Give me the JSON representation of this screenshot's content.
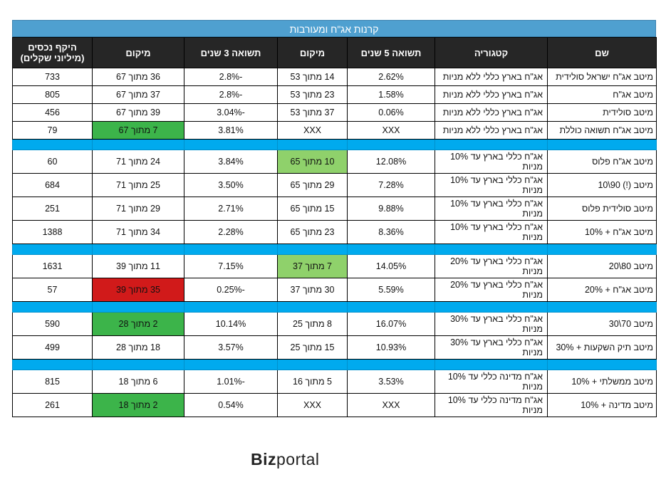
{
  "title": "קרנות אג\"ח ומעורבות",
  "headers": {
    "name": "שם",
    "category": "קטגוריה",
    "ret5": "תשואה 5 שנים",
    "rank5": "מיקום",
    "ret3": "תשואה 3 שנים",
    "rank3": "מיקום",
    "assets": "היקף נכסים (מיליוני שקלים)"
  },
  "rows": [
    {
      "name": "מיטב אג\"ח ישראל סולידית",
      "category": "אג\"ח בארץ כללי ללא מניות",
      "ret5": "2.62%",
      "rank5": "14 מתוך 53",
      "ret3": "-2.8%",
      "rank3": "36 מתוך 67",
      "assets": "733"
    },
    {
      "name": "מיטב אג\"ח",
      "category": "אג\"ח בארץ כללי ללא מניות",
      "ret5": "1.58%",
      "rank5": "23 מתוך 53",
      "ret3": "-2.8%",
      "rank3": "37 מתוך 67",
      "assets": "805"
    },
    {
      "name": "מיטב סולידית",
      "category": "אג\"ח בארץ כללי ללא מניות",
      "ret5": "0.06%",
      "rank5": "37 מתוך 53",
      "ret3": "-3.04%",
      "rank3": "39 מתוך 67",
      "assets": "456"
    },
    {
      "name": "מיטב אג\"ח תשואה כוללת",
      "category": "אג\"ח בארץ כללי ללא מניות",
      "ret5": "XXX",
      "rank5": "XXX",
      "ret3": "3.81%",
      "rank3": "7 מתוך 67",
      "assets": "79"
    },
    {
      "name": "מיטב אג\"ח פלוס",
      "category": "אג\"ח כללי בארץ עד 10% מניות",
      "ret5": "12.08%",
      "rank5": "10 מתוך 65",
      "ret3": "3.84%",
      "rank3": "24 מתוך 71",
      "assets": "60"
    },
    {
      "name": "מיטב (!) 90\\10",
      "category": "אג\"ח כללי בארץ עד 10% מניות",
      "ret5": "7.28%",
      "rank5": "29 מתוך 65",
      "ret3": "3.50%",
      "rank3": "25 מתוך 71",
      "assets": "684"
    },
    {
      "name": "מיטב סולידית פלוס",
      "category": "אג\"ח כללי בארץ עד 10% מניות",
      "ret5": "9.88%",
      "rank5": "15 מתוך 65",
      "ret3": "2.71%",
      "rank3": "29 מתוך 71",
      "assets": "251"
    },
    {
      "name": "מיטב אג\"ח + 10%",
      "category": "אג\"ח כללי בארץ עד 10% מניות",
      "ret5": "8.36%",
      "rank5": "23 מתוך 65",
      "ret3": "2.28%",
      "rank3": "34 מתוך 71",
      "assets": "1388"
    },
    {
      "name": "מיטב 80\\20",
      "category": "אג\"ח כללי בארץ עד 20% מניות",
      "ret5": "14.05%",
      "rank5": "7 מתוך 37",
      "ret3": "7.15%",
      "rank3": "11 מתוך 39",
      "assets": "1631"
    },
    {
      "name": "מיטב אג\"ח + 20%",
      "category": "אג\"ח כללי בארץ עד 20% מניות",
      "ret5": "5.59%",
      "rank5": "30 מתוך 37",
      "ret3": "-0.25%",
      "rank3": "35 מתוך 39",
      "assets": "57"
    },
    {
      "name": "מיטב 70\\30",
      "category": "אג\"ח כללי בארץ עד 30% מניות",
      "ret5": "16.07%",
      "rank5": "8 מתוך 25",
      "ret3": "10.14%",
      "rank3": "2 מתוך 28",
      "assets": "590"
    },
    {
      "name": "מיטב תיק השקעות + 30%",
      "category": "אג\"ח כללי בארץ עד 30% מניות",
      "ret5": "10.93%",
      "rank5": "15 מתוך 25",
      "ret3": "3.57%",
      "rank3": "18 מתוך 28",
      "assets": "499"
    },
    {
      "name": "מיטב ממשלתי + 10%",
      "category": "אג\"ח מדינה כללי עד 10% מניות",
      "ret5": "3.53%",
      "rank5": "5 מתוך 16",
      "ret3": "-1.01%",
      "rank3": "6 מתוך 18",
      "assets": "815"
    },
    {
      "name": "מיטב מדינה + 10%",
      "category": "אג\"ח מדינה כללי עד 10% מניות",
      "ret5": "XXX",
      "rank5": "XXX",
      "ret3": "0.54%",
      "rank3": "2 מתוך 18",
      "assets": "261"
    }
  ],
  "highlight_colors": {
    "green": "#3cb44a",
    "light_green": "#8fd16b",
    "red": "#d11a1a",
    "separator": "#00aaee",
    "header": "#262626",
    "title_bar": "#4fa0d0"
  },
  "logo": {
    "bold": "Biz",
    "light": "portal"
  }
}
